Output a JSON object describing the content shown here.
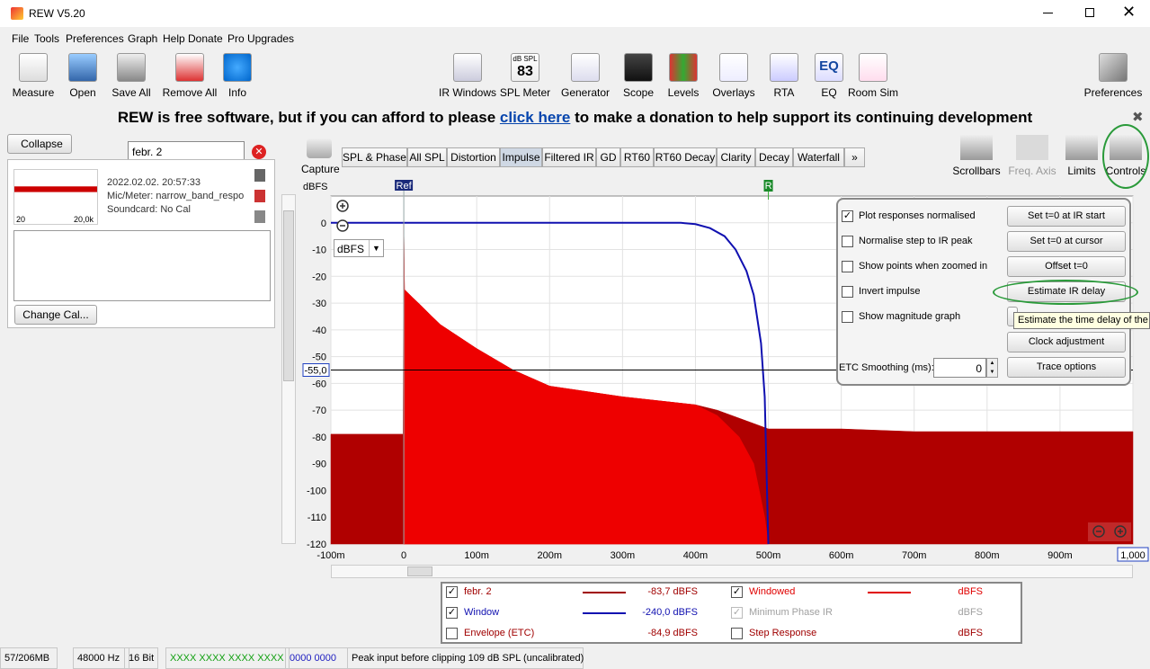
{
  "window": {
    "title": "REW V5.20"
  },
  "menu": [
    "File",
    "Tools",
    "Preferences",
    "Graph",
    "Help",
    "Donate",
    "Pro Upgrades"
  ],
  "toolbar_left": [
    "Measure",
    "Open",
    "Save All",
    "Remove All",
    "Info"
  ],
  "toolbar_center": [
    "IR Windows",
    "SPL Meter",
    "Generator",
    "Scope",
    "Levels",
    "Overlays",
    "RTA",
    "EQ",
    "Room Sim"
  ],
  "spl_icon": {
    "unit": "dB SPL",
    "value": "83"
  },
  "eq_icon": "EQ",
  "toolbar_right": "Preferences",
  "banner": {
    "before": "REW is free software, but if you can afford to please",
    "link": "click here",
    "after": "to make a donation to help support its continuing development"
  },
  "sidebar": {
    "collapse": "Collapse",
    "search": "febr. 2",
    "measurement": {
      "date": "2022.02.02. 20:57:33",
      "mic": "Mic/Meter: narrow_band_respo",
      "soundcard": "Soundcard: No Cal",
      "thumb_min": "20",
      "thumb_max": "20,0k"
    },
    "change_cal": "Change Cal..."
  },
  "capture": "Capture",
  "tabs": [
    "SPL & Phase",
    "All SPL",
    "Distortion",
    "Impulse",
    "Filtered IR",
    "GD",
    "RT60",
    "RT60 Decay",
    "Clarity",
    "Decay",
    "Waterfall",
    "»"
  ],
  "selected_tab": 3,
  "tools": [
    {
      "label": "Scrollbars",
      "enabled": true
    },
    {
      "label": "Freq. Axis",
      "enabled": false
    },
    {
      "label": "Limits",
      "enabled": true
    },
    {
      "label": "Controls",
      "enabled": true
    }
  ],
  "graph": {
    "y_unit": "dBFS",
    "xlim": [
      -100,
      1000
    ],
    "ylim": [
      -120,
      10
    ],
    "yticks": [
      0,
      -10,
      -20,
      -30,
      -40,
      -50,
      -60,
      -70,
      -80,
      -90,
      -100,
      -110,
      -120
    ],
    "xticks": [
      {
        "value": -100,
        "label": "-100m"
      },
      0,
      {
        "value": 100,
        "label": "100m"
      },
      {
        "value": 200,
        "label": "200m"
      },
      {
        "value": 300,
        "label": "300m"
      },
      {
        "value": 400,
        "label": "400m"
      },
      {
        "value": 500,
        "label": "500m"
      },
      {
        "value": 600,
        "label": "600m"
      },
      {
        "value": 700,
        "label": "700m"
      },
      {
        "value": 800,
        "label": "800m"
      },
      {
        "value": 900,
        "label": "900m"
      },
      {
        "value": 1000,
        "label": "1,000"
      }
    ],
    "grid": true,
    "ref_marker": {
      "label": "Ref",
      "x": 0
    },
    "r_marker": {
      "label": "R",
      "x": 500
    },
    "cursor": {
      "value": -55,
      "label": "-55,0"
    },
    "unit_select": "dBFS",
    "traces": [
      {
        "name": "febr. 2",
        "color": "#b00000",
        "fill": true,
        "x": [
          -100,
          -1,
          0,
          1,
          20,
          50,
          100,
          150,
          200,
          300,
          400,
          430,
          480,
          500,
          600,
          700,
          800,
          900,
          1000
        ],
        "y": [
          -79,
          -79,
          0,
          -25,
          -30,
          -38,
          -47,
          -55,
          -61,
          -65,
          -68,
          -70,
          -75,
          -77,
          -77,
          -78,
          -78,
          -78,
          -78
        ]
      },
      {
        "name": "Windowed",
        "color": "#ee0000",
        "fill": true,
        "x": [
          0,
          1,
          20,
          50,
          100,
          150,
          200,
          300,
          400,
          430,
          460,
          480,
          495,
          500
        ],
        "y": [
          0,
          -25,
          -30,
          -38,
          -47,
          -55,
          -61,
          -65,
          -68,
          -72,
          -80,
          -90,
          -110,
          -120
        ]
      },
      {
        "name": "Window",
        "color": "#1010b0",
        "fill": false,
        "x": [
          -100,
          380,
          400,
          420,
          440,
          455,
          470,
          480,
          490,
          495,
          500
        ],
        "y": [
          0,
          0,
          -0.5,
          -2,
          -5,
          -10,
          -18,
          -27,
          -45,
          -65,
          -120
        ]
      }
    ]
  },
  "controls": {
    "checkboxes": [
      {
        "label": "Plot responses normalised",
        "checked": true
      },
      {
        "label": "Normalise step to IR peak",
        "checked": false
      },
      {
        "label": "Show points when zoomed in",
        "checked": false
      },
      {
        "label": "Invert impulse",
        "checked": false
      },
      {
        "label": "Show magnitude graph",
        "checked": false
      }
    ],
    "buttons": [
      "Set t=0 at IR start",
      "Set t=0 at cursor",
      "Offset t=0",
      "Estimate IR delay",
      "Clock adjustment",
      "Trace options"
    ],
    "tooltip": "Estimate the time delay of the II",
    "smoothing_label": "ETC Smoothing (ms):",
    "smoothing_value": 0
  },
  "legend": [
    {
      "name": "febr. 2",
      "checked": true,
      "color": "#a00000",
      "line": true,
      "readout": "-83,7 dBFS"
    },
    {
      "name": "Windowed",
      "checked": true,
      "color": "#e00000",
      "line": true,
      "readout": "dBFS"
    },
    {
      "name": "Window",
      "checked": true,
      "color": "#1010b0",
      "line": true,
      "readout": "-240,0 dBFS"
    },
    {
      "name": "Minimum Phase IR",
      "checked": true,
      "color": "#a0a0a0",
      "line": false,
      "readout": "dBFS"
    },
    {
      "name": "Envelope (ETC)",
      "checked": false,
      "color": "#a00000",
      "line": false,
      "readout": "-84,9 dBFS"
    },
    {
      "name": "Step Response",
      "checked": false,
      "color": "#a00000",
      "line": false,
      "readout": "dBFS"
    }
  ],
  "status": [
    {
      "text": "57/206MB",
      "color": "#000000"
    },
    {
      "text": "48000 Hz",
      "color": "#000000"
    },
    {
      "text": "16 Bit",
      "color": "#000000"
    },
    {
      "text": "XXXX XXXX  XXXX XXXX",
      "color": "#10a010"
    },
    {
      "text": "0000 0000",
      "color": "#2020c0"
    },
    {
      "text": "Peak input before clipping 109 dB SPL (uncalibrated)",
      "color": "#000000"
    }
  ]
}
